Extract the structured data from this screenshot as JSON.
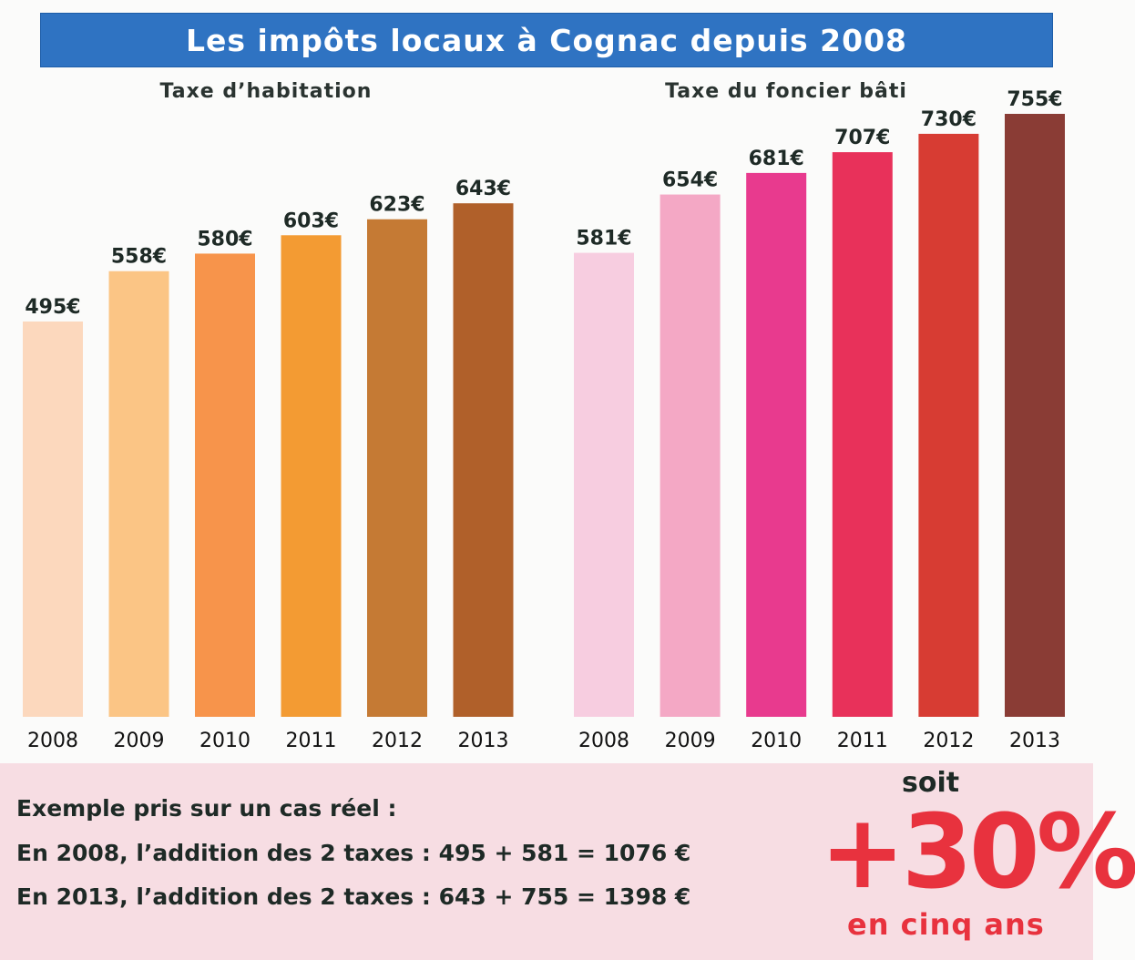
{
  "header": {
    "title": "Les impôts locaux à Cognac depuis 2008"
  },
  "colors": {
    "title_bg": "#2f73c2",
    "accent_red": "#e8323e",
    "band_bg": "#f7dde3",
    "habitation": [
      "#fcd8bd",
      "#fbc585",
      "#f7944b",
      "#f39b33",
      "#c57a34",
      "#b0602a"
    ],
    "foncier": [
      "#f7cde0",
      "#f4a8c5",
      "#e83a8e",
      "#e8315a",
      "#d73c33",
      "#8a3c35"
    ]
  },
  "chart_data": [
    {
      "type": "bar",
      "title": "Taxe d’habitation",
      "categories": [
        "2008",
        "2009",
        "2010",
        "2011",
        "2012",
        "2013"
      ],
      "values": [
        495,
        558,
        580,
        603,
        623,
        643
      ],
      "labels": [
        "495€",
        "558€",
        "580€",
        "603€",
        "623€",
        "643€"
      ],
      "unit": "€",
      "grid": false,
      "legend": "none"
    },
    {
      "type": "bar",
      "title": "Taxe du foncier bâti",
      "categories": [
        "2008",
        "2009",
        "2010",
        "2011",
        "2012",
        "2013"
      ],
      "values": [
        581,
        654,
        681,
        707,
        730,
        755
      ],
      "labels": [
        "581€",
        "654€",
        "681€",
        "707€",
        "730€",
        "755€"
      ],
      "unit": "€",
      "grid": false,
      "legend": "none"
    }
  ],
  "example": {
    "intro": "Exemple pris sur un cas réel :",
    "line_2008": "En 2008, l’addition des 2 taxes : 495 + 581 = 1076 €",
    "line_2013": "En 2013, l’addition des 2 taxes : 643 + 755 = 1398 €"
  },
  "summary": {
    "prefix": "soit",
    "value": "+30%",
    "suffix": "en cinq ans"
  }
}
